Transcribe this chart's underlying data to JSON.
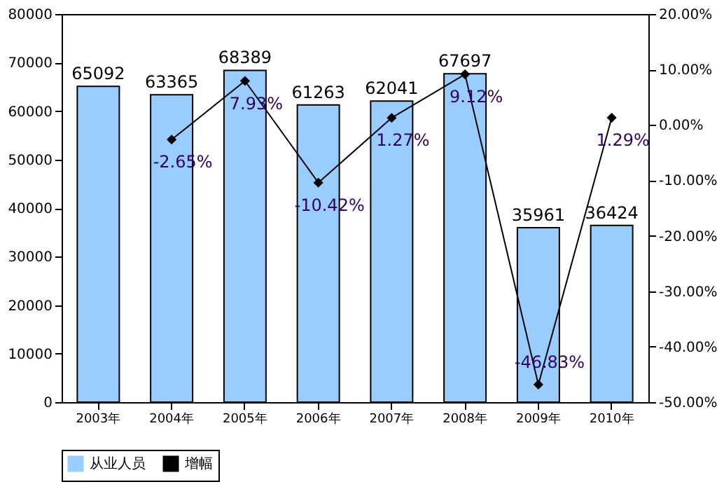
{
  "chart_data": {
    "type": "bar",
    "categories": [
      "2003年",
      "2004年",
      "2005年",
      "2006年",
      "2007年",
      "2008年",
      "2009年",
      "2010年"
    ],
    "series": [
      {
        "name": "从业人员",
        "color": "#99ccff",
        "values": [
          65092,
          63365,
          68389,
          61263,
          62041,
          67697,
          35961,
          36424
        ],
        "value_labels": [
          "65092",
          "63365",
          "68389",
          "61263",
          "62041",
          "67697",
          "35961",
          "36424"
        ]
      },
      {
        "name": "增幅",
        "type": "line",
        "axis": "y2",
        "color": "#000000",
        "marker": "diamond",
        "values": [
          null,
          -2.65,
          7.93,
          -10.42,
          1.27,
          9.12,
          -46.83,
          1.29
        ],
        "value_labels": [
          null,
          "-2.65%",
          "7.93%",
          "-10.42%",
          "1.27%",
          "9.12%",
          "-46.83%",
          "1.29%"
        ]
      }
    ],
    "ylim": [
      0,
      80000
    ],
    "yticks": [
      0,
      10000,
      20000,
      30000,
      40000,
      50000,
      60000,
      70000,
      80000
    ],
    "y2lim": [
      -50,
      20
    ],
    "y2ticks": [
      {
        "value": -50,
        "label": "-50.00%"
      },
      {
        "value": -40,
        "label": "-40.00%"
      },
      {
        "value": -30,
        "label": "-30.00%"
      },
      {
        "value": -20,
        "label": "-20.00%"
      },
      {
        "value": -10,
        "label": "-10.00%"
      },
      {
        "value": 0,
        "label": "0.00%"
      },
      {
        "value": 10,
        "label": "10.00%"
      },
      {
        "value": 20,
        "label": "20.00%"
      }
    ],
    "legend": "bottom",
    "grid": false
  }
}
